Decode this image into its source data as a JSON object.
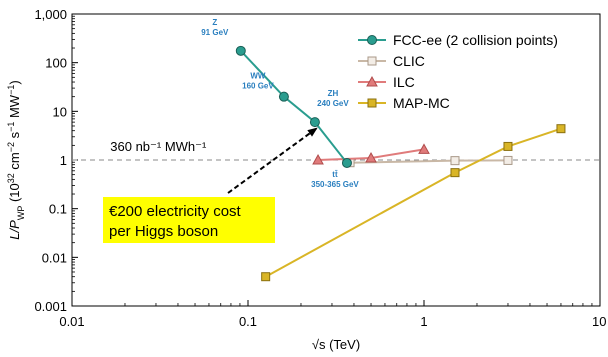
{
  "chart_data": {
    "type": "line",
    "x_scale": "log",
    "y_scale": "log",
    "xlim": [
      0.01,
      10
    ],
    "ylim": [
      0.001,
      1000
    ],
    "x_ticks": [
      0.01,
      0.1,
      1,
      10
    ],
    "x_tick_labels": [
      "0.01",
      "0.1",
      "1",
      "10"
    ],
    "y_ticks": [
      0.001,
      0.01,
      0.1,
      1,
      10,
      100,
      1000
    ],
    "y_tick_labels": [
      "0.001",
      "0.01",
      "0.1",
      "1",
      "10",
      "100",
      "1,000"
    ],
    "xlabel": "√s (TeV)",
    "ylabel": "L/P_WP (10^32 cm^-2 s^-1 MW^-1)",
    "legend_position": "top-right",
    "series": [
      {
        "name": "FCC-ee (2 collision points)",
        "color": "#2a9d8f",
        "marker": "circle",
        "x": [
          0.091,
          0.16,
          0.24,
          0.365
        ],
        "y": [
          175,
          20,
          6,
          0.87
        ]
      },
      {
        "name": "CLIC",
        "color": "#c9b8a6",
        "marker": "square-open",
        "x": [
          0.38,
          1.5,
          3.0
        ],
        "y": [
          0.88,
          0.97,
          0.98
        ]
      },
      {
        "name": "ILC",
        "color": "#e07b7b",
        "marker": "triangle",
        "x": [
          0.25,
          0.5,
          1.0
        ],
        "y": [
          1.0,
          1.1,
          1.65
        ]
      },
      {
        "name": "MAP-MC",
        "color": "#d9b526",
        "marker": "square",
        "x": [
          0.126,
          1.5,
          3.0,
          6.0
        ],
        "y": [
          0.004,
          0.55,
          1.9,
          4.4
        ]
      }
    ],
    "reference_line": {
      "y": 1,
      "label": "360 nb⁻¹ MWh⁻¹",
      "style": "dashed"
    },
    "point_labels": [
      {
        "lines": [
          "Z",
          "91 GeV"
        ],
        "x": 0.091,
        "y": 175
      },
      {
        "lines": [
          "WW",
          "160 GeV"
        ],
        "x": 0.16,
        "y": 20
      },
      {
        "lines": [
          "ZH",
          "240 GeV"
        ],
        "x": 0.24,
        "y": 6
      },
      {
        "lines": [
          "tt̄",
          "350-365 GeV"
        ],
        "x": 0.365,
        "y": 0.87
      }
    ],
    "callout": {
      "lines": [
        "€200 electricity cost",
        "per Higgs boson"
      ],
      "background": "#ffff00",
      "arrow_target": {
        "x": 0.24,
        "y": 6
      }
    }
  }
}
